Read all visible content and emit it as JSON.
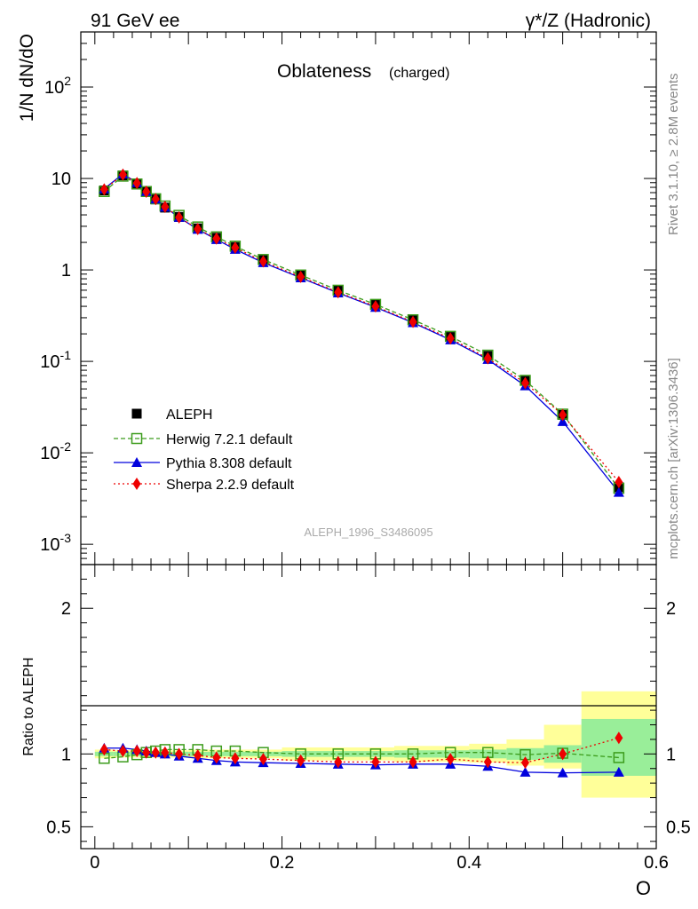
{
  "header": {
    "left": "91 GeV ee",
    "right": "γ*/Z (Hadronic)"
  },
  "side": {
    "rivet": "Rivet 3.1.10, ≥ 2.8M events",
    "mcplots": "mcplots.cern.ch [arXiv:1306.3436]"
  },
  "analysis_id": "ALEPH_1996_S3486095",
  "chart_data": [
    {
      "type": "line",
      "title": "Oblateness",
      "title_suffix": "(charged)",
      "ylabel": "1/N dN/dO",
      "yscale": "log",
      "ylim": [
        0.0006,
        400
      ],
      "xlim": [
        -0.015,
        0.6
      ],
      "y_ticks": [
        {
          "v": 0.001,
          "base": "10",
          "exp": "-3"
        },
        {
          "v": 0.01,
          "base": "10",
          "exp": "-2"
        },
        {
          "v": 0.1,
          "base": "10",
          "exp": "-1"
        },
        {
          "v": 1,
          "base": "1",
          "exp": ""
        },
        {
          "v": 10,
          "base": "10",
          "exp": ""
        },
        {
          "v": 100,
          "base": "10",
          "exp": "2"
        }
      ],
      "x": [
        0.01,
        0.03,
        0.045,
        0.055,
        0.065,
        0.075,
        0.09,
        0.11,
        0.13,
        0.15,
        0.18,
        0.22,
        0.26,
        0.3,
        0.34,
        0.38,
        0.42,
        0.46,
        0.5,
        0.56
      ],
      "series": [
        {
          "name": "ALEPH",
          "color": "#000000",
          "marker": "square-filled",
          "dash": "none",
          "values": [
            7.4,
            10.8,
            8.7,
            7.1,
            5.9,
            4.8,
            3.8,
            2.85,
            2.25,
            1.78,
            1.28,
            0.88,
            0.6,
            0.42,
            0.285,
            0.185,
            0.115,
            0.062,
            0.026,
            0.0042
          ]
        },
        {
          "name": "Herwig 7.2.1 default",
          "color": "#3c9c1c",
          "marker": "square-open",
          "dash": "5,3",
          "values": [
            7.2,
            10.6,
            8.7,
            7.2,
            6.0,
            5.0,
            3.95,
            2.95,
            2.3,
            1.82,
            1.3,
            0.88,
            0.6,
            0.42,
            0.285,
            0.188,
            0.117,
            0.062,
            0.0265,
            0.0041
          ]
        },
        {
          "name": "Pythia 8.308 default",
          "color": "#0000dd",
          "marker": "triangle",
          "dash": "none",
          "values": [
            7.7,
            11.2,
            9.0,
            7.2,
            5.95,
            4.85,
            3.75,
            2.78,
            2.15,
            1.68,
            1.2,
            0.82,
            0.56,
            0.39,
            0.265,
            0.172,
            0.105,
            0.054,
            0.022,
            0.0037
          ]
        },
        {
          "name": "Sherpa 2.2.9 default",
          "color": "#ee0000",
          "marker": "diamond",
          "dash": "2,3",
          "values": [
            7.6,
            11.0,
            8.9,
            7.15,
            5.95,
            4.9,
            3.75,
            2.8,
            2.2,
            1.75,
            1.24,
            0.84,
            0.57,
            0.4,
            0.27,
            0.178,
            0.108,
            0.058,
            0.026,
            0.0048
          ]
        }
      ]
    },
    {
      "type": "line",
      "ylabel": "Ratio to ALEPH",
      "xlabel": "O",
      "ylim": [
        0.35,
        2.3
      ],
      "xlim": [
        -0.015,
        0.6
      ],
      "y_ticks": [
        0.5,
        1,
        2
      ],
      "x_ticks": [
        "0",
        "0.2",
        "0.4",
        "0.6"
      ],
      "bands": [
        {
          "x0": 0.0,
          "x1": 0.02,
          "y_lo": 0.985,
          "y_hi": 1.015,
          "w_lo": 0.97,
          "w_hi": 1.03
        },
        {
          "x0": 0.02,
          "x1": 0.04,
          "y_lo": 0.985,
          "y_hi": 1.015,
          "w_lo": 0.975,
          "w_hi": 1.025
        },
        {
          "x0": 0.04,
          "x1": 0.06,
          "y_lo": 0.985,
          "y_hi": 1.015,
          "w_lo": 0.975,
          "w_hi": 1.025
        },
        {
          "x0": 0.06,
          "x1": 0.1,
          "y_lo": 0.985,
          "y_hi": 1.015,
          "w_lo": 0.975,
          "w_hi": 1.025
        },
        {
          "x0": 0.1,
          "x1": 0.2,
          "y_lo": 0.985,
          "y_hi": 1.015,
          "w_lo": 0.97,
          "w_hi": 1.03
        },
        {
          "x0": 0.2,
          "x1": 0.32,
          "y_lo": 0.98,
          "y_hi": 1.02,
          "w_lo": 0.955,
          "w_hi": 1.045
        },
        {
          "x0": 0.32,
          "x1": 0.4,
          "y_lo": 0.975,
          "y_hi": 1.025,
          "w_lo": 0.945,
          "w_hi": 1.055
        },
        {
          "x0": 0.4,
          "x1": 0.44,
          "y_lo": 0.97,
          "y_hi": 1.03,
          "w_lo": 0.94,
          "w_hi": 1.07
        },
        {
          "x0": 0.44,
          "x1": 0.48,
          "y_lo": 0.96,
          "y_hi": 1.04,
          "w_lo": 0.92,
          "w_hi": 1.1
        },
        {
          "x0": 0.48,
          "x1": 0.52,
          "y_lo": 0.94,
          "y_hi": 1.06,
          "w_lo": 0.9,
          "w_hi": 1.2
        },
        {
          "x0": 0.52,
          "x1": 0.6,
          "y_lo": 0.85,
          "y_hi": 1.24,
          "w_lo": 0.7,
          "w_hi": 1.43
        }
      ],
      "x": [
        0.01,
        0.03,
        0.045,
        0.055,
        0.065,
        0.075,
        0.09,
        0.11,
        0.13,
        0.15,
        0.18,
        0.22,
        0.26,
        0.3,
        0.34,
        0.38,
        0.42,
        0.46,
        0.5,
        0.56
      ],
      "series": [
        {
          "name": "Herwig 7.2.1 default",
          "color": "#3c9c1c",
          "marker": "square-open",
          "dash": "5,3",
          "values": [
            0.97,
            0.98,
            0.995,
            1.01,
            1.02,
            1.03,
            1.03,
            1.03,
            1.02,
            1.02,
            1.01,
            1.0,
            1.0,
            1.0,
            1.0,
            1.01,
            1.01,
            0.995,
            1.005,
            0.975
          ]
        },
        {
          "name": "Pythia 8.308 default",
          "color": "#0000dd",
          "marker": "triangle",
          "dash": "none",
          "values": [
            1.04,
            1.04,
            1.03,
            1.02,
            1.01,
            1.0,
            0.985,
            0.97,
            0.955,
            0.945,
            0.94,
            0.935,
            0.93,
            0.925,
            0.93,
            0.93,
            0.915,
            0.875,
            0.87,
            0.875
          ]
        },
        {
          "name": "Sherpa 2.2.9 default",
          "color": "#ee0000",
          "marker": "diamond",
          "dash": "2,3",
          "values": [
            1.03,
            1.02,
            1.02,
            1.01,
            1.01,
            1.01,
            1.0,
            0.99,
            0.975,
            0.97,
            0.965,
            0.955,
            0.945,
            0.945,
            0.945,
            0.965,
            0.945,
            0.94,
            1.0,
            1.11
          ]
        }
      ]
    }
  ]
}
